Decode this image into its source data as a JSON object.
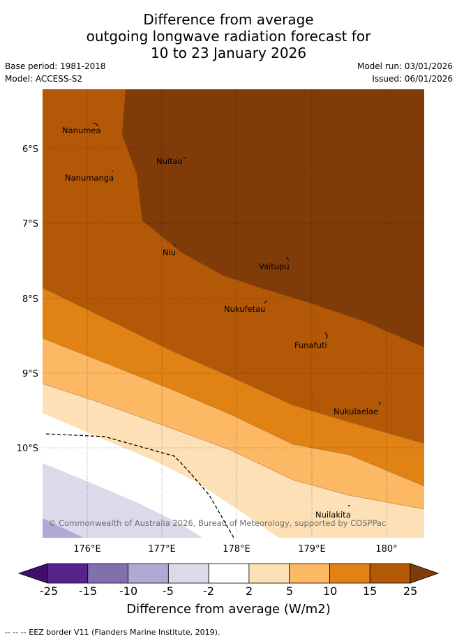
{
  "title": {
    "line1": "Difference from average",
    "line2": "outgoing longwave radiation forecast for",
    "line3": "10 to 23 January 2026"
  },
  "meta": {
    "base_period": "Base period: 1981-2018",
    "model": "Model: ACCESS-S2",
    "model_run": "Model run: 03/01/2026",
    "issued": "Issued: 06/01/2026"
  },
  "map": {
    "lat_labels": [
      "6°S",
      "7°S",
      "8°S",
      "9°S",
      "10°S"
    ],
    "lon_labels": [
      "176°E",
      "177°E",
      "178°E",
      "179°E",
      "180°"
    ],
    "places": [
      {
        "name": "Nanumea"
      },
      {
        "name": "Nuitao"
      },
      {
        "name": "Nanumanga"
      },
      {
        "name": "Niu"
      },
      {
        "name": "Vaitupu"
      },
      {
        "name": "Nukufetau"
      },
      {
        "name": "Funafuti"
      },
      {
        "name": "Nukulaelae"
      },
      {
        "name": "Nuilakita"
      }
    ],
    "copyright": "© Commonwealth of Australia 2026, Bureau of Meteorology, supported by COSPPac"
  },
  "colorbar": {
    "ticks": [
      "-25",
      "-15",
      "-10",
      "-5",
      "-2",
      "2",
      "5",
      "10",
      "15",
      "25"
    ],
    "colors": [
      "#3f0f6e",
      "#57228c",
      "#8170ae",
      "#b1a9d3",
      "#dadaeb",
      "#ffffff",
      "#fee0b6",
      "#fdb863",
      "#e08214",
      "#b35806",
      "#7f3b08"
    ],
    "title": "Difference from average (W/m2)"
  },
  "footer": "--  --  -- EEZ border V11 (Flanders Marine Institute, 2019)."
}
